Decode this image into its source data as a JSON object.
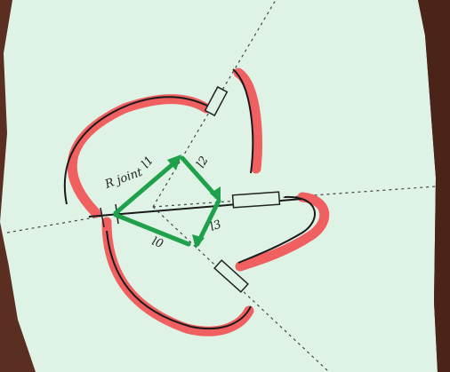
{
  "labels": {
    "joint": "R joint",
    "l1": "l1",
    "l2": "l2",
    "l3": "l3",
    "l0": "l0"
  }
}
